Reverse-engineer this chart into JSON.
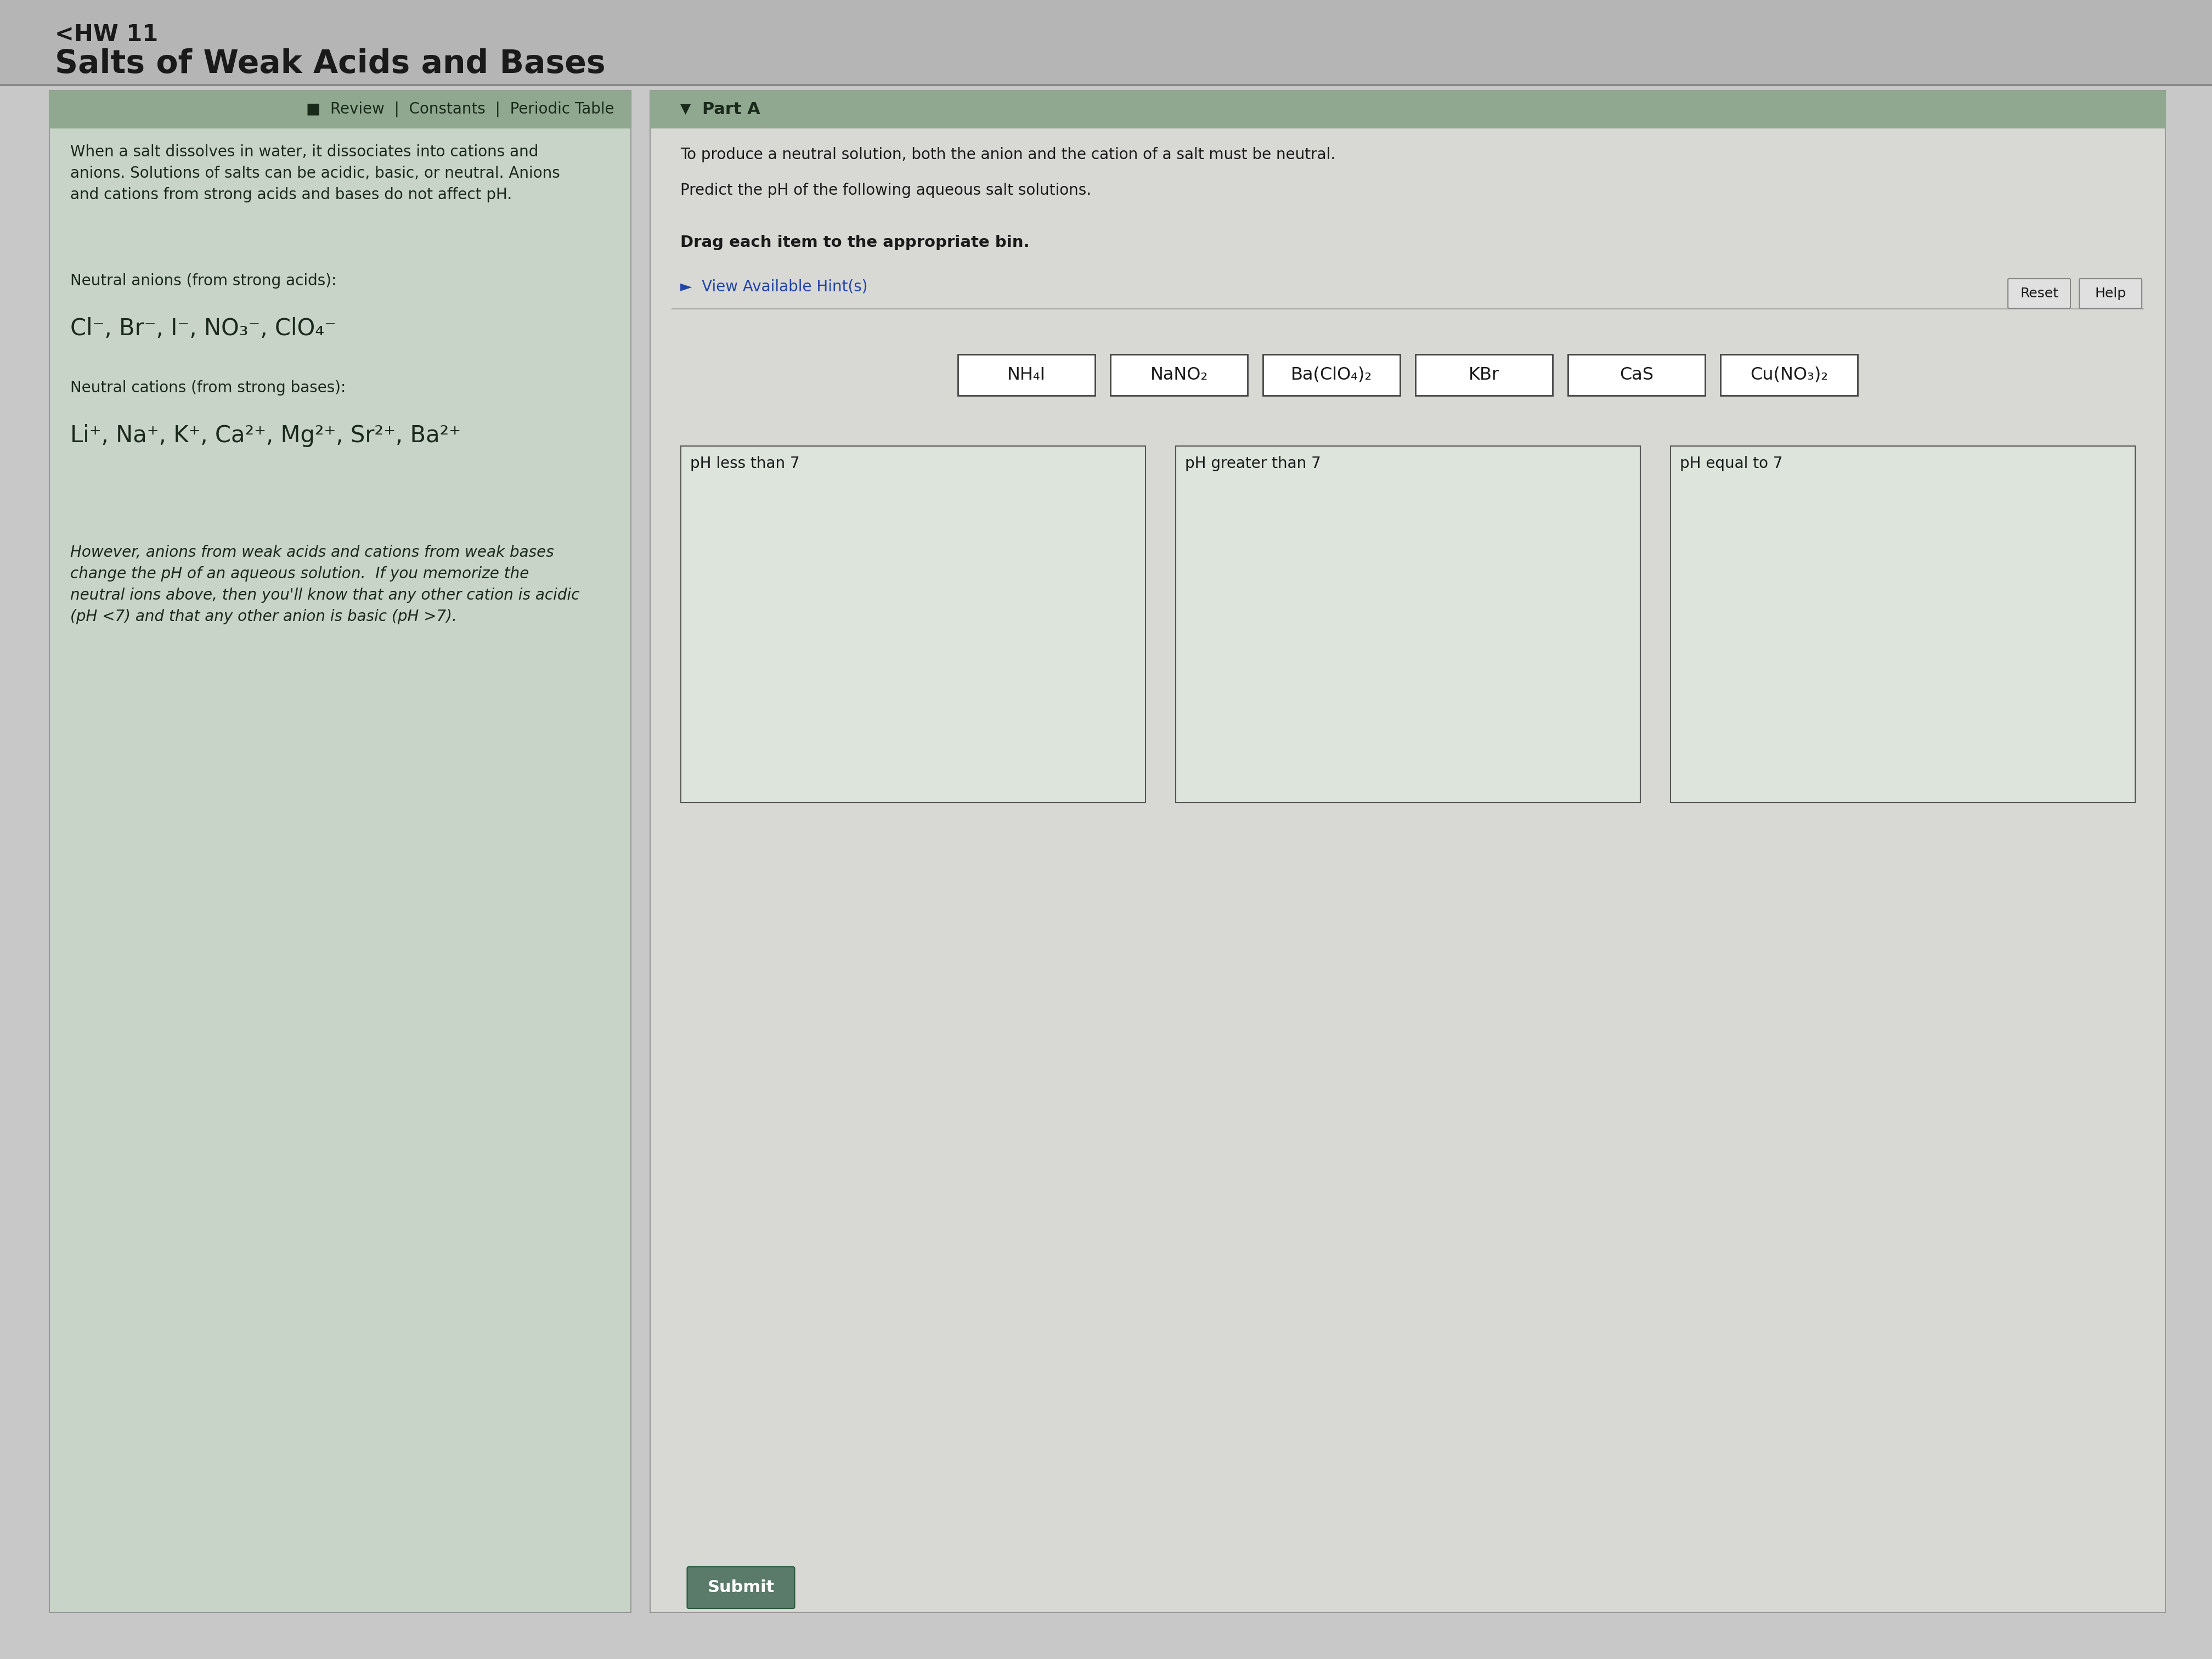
{
  "bg_color": "#c0c0c0",
  "page_bg": "#c8c8c8",
  "title_hw": "<HW 11",
  "title_main": "Salts of Weak Acids and Bases",
  "review_bar_text": "■  Review  |  Constants  |  Periodic Table",
  "part_a_label": "Part A",
  "left_intro": "When a salt dissolves in water, it dissociates into cations and\nanions. Solutions of salts can be acidic, basic, or neutral. Anions\nand cations from strong acids and bases do not affect pH.",
  "neutral_anions_label": "Neutral anions (from strong acids):",
  "neutral_anions": "Cl⁻, Br⁻, I⁻, NO₃⁻, ClO₄⁻",
  "neutral_cations_label": "Neutral cations (from strong bases):",
  "neutral_cations": "Li⁺, Na⁺, K⁺, Ca²⁺, Mg²⁺, Sr²⁺, Ba²⁺",
  "however_text": "However, anions from weak acids and cations from weak bases\nchange the pH of an aqueous solution.  If you memorize the\nneutral ions above, then you'll know that any other cation is acidic\n(pH <7) and that any other anion is basic (pH >7).",
  "right_top_text1": "To produce a neutral solution, both the anion and the cation of a salt must be neutral.",
  "right_top_text2": "Predict the pH of the following aqueous salt solutions.",
  "drag_text": "Drag each item to the appropriate bin.",
  "hint_text": "►  View Available Hint(s)",
  "reset_btn": "Reset",
  "help_btn": "Help",
  "compounds": [
    "NH₄I",
    "NaNO₂",
    "Ba(ClO₄)₂",
    "KBr",
    "CaS",
    "Cu(NO₃)₂"
  ],
  "bin1_label": "pH less than 7",
  "bin2_label": "pH greater than 7",
  "bin3_label": "pH equal to 7",
  "submit_btn": "Submit",
  "left_panel_bg": "#c8d4c8",
  "right_panel_bg": "#d8d8d4",
  "green_header_bg": "#8fa88f",
  "compound_box_color": "#ffffff",
  "compound_box_border": "#444444",
  "bin_box_color": "#dce4dc",
  "bin_box_border": "#555555",
  "submit_btn_color": "#5a7a6a",
  "text_dark": "#1a1a1a",
  "text_panel": "#1a2a1a",
  "hint_color": "#2244aa",
  "separator_color": "#888888",
  "outer_bg": "#b8b8b8"
}
